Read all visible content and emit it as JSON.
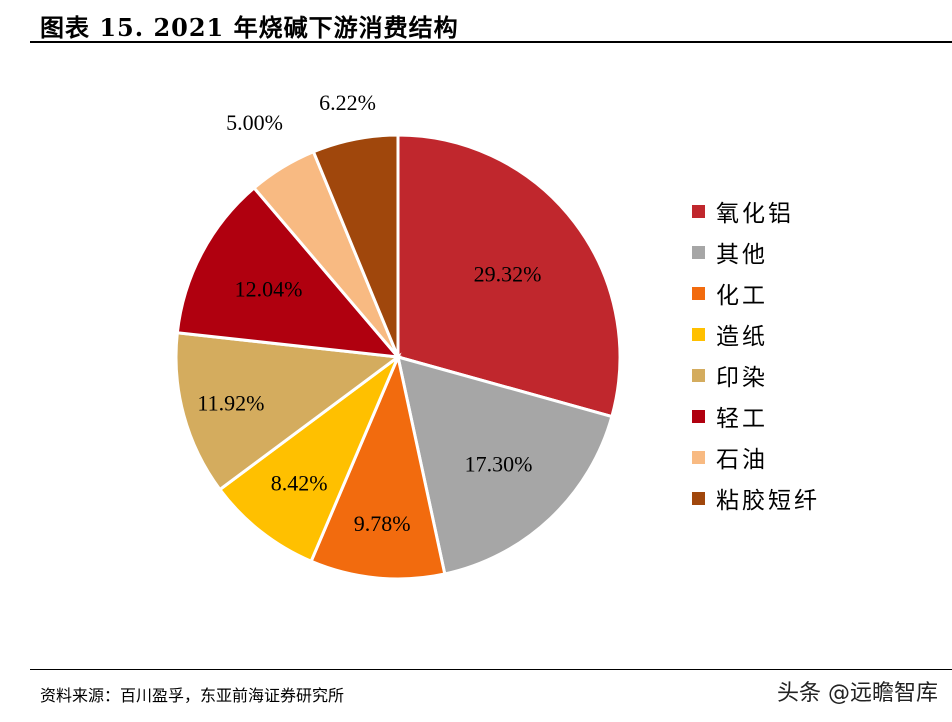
{
  "header": {
    "title": "图表 15. 2021 年烧碱下游消费结构"
  },
  "chart_data": {
    "type": "pie",
    "categories": [
      "氧化铝",
      "其他",
      "化工",
      "造纸",
      "印染",
      "轻工",
      "石油",
      "粘胶短纤"
    ],
    "values": [
      29.32,
      17.3,
      9.78,
      8.42,
      11.92,
      12.04,
      5.0,
      6.22
    ],
    "labels": [
      "29.32%",
      "17.30%",
      "9.78%",
      "8.42%",
      "11.92%",
      "12.04%",
      "5.00%",
      "6.22%"
    ],
    "colors": [
      "#C0272D",
      "#A6A6A6",
      "#F26B0E",
      "#FFC000",
      "#D4AC5E",
      "#B0000F",
      "#F8BA82",
      "#A0470C"
    ],
    "legend_position": "right",
    "start": "top",
    "direction": "clockwise"
  },
  "footer": {
    "source": "资料来源：百川盈孚，东亚前海证券研究所",
    "watermark": "头条 @远瞻智库"
  }
}
